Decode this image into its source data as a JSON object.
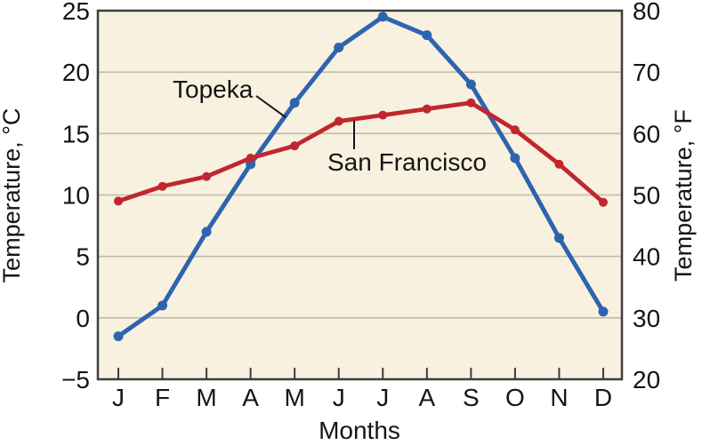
{
  "page": {
    "background": "#ffffff"
  },
  "chart_data": {
    "type": "line",
    "title": "",
    "xlabel": "Months",
    "ylabel_left": "Temperature, °C",
    "ylabel_right": "Temperature, °F",
    "categories": [
      "J",
      "F",
      "M",
      "A",
      "M",
      "J",
      "J",
      "A",
      "S",
      "O",
      "N",
      "D"
    ],
    "y_left_ticks": [
      25,
      20,
      15,
      10,
      5,
      0,
      -5
    ],
    "y_right_ticks": [
      80,
      70,
      60,
      50,
      40,
      30,
      20
    ],
    "ylim_left": [
      -5,
      25
    ],
    "ylim_right": [
      20,
      80
    ],
    "gridlines_celsius": [
      20,
      15,
      10,
      5,
      0
    ],
    "grid": "horizontal",
    "legend_position": "inline-annotations",
    "plot_background": "#f8f1df",
    "axis_color": "#3d3d3d",
    "gridline_color": "#c2bbab",
    "text_color": "#151515",
    "series": [
      {
        "name": "Topeka",
        "color": "#2e64af",
        "marker": "circle",
        "values": [
          -1.5,
          1,
          7,
          12.5,
          17.5,
          22,
          24.5,
          23,
          19,
          13,
          6.5,
          0.5
        ]
      },
      {
        "name": "San Francisco",
        "color": "#c0272d",
        "marker": "circle",
        "values": [
          9.5,
          10.7,
          11.5,
          13,
          14,
          16,
          16.5,
          17,
          17.5,
          15.3,
          12.5,
          9.4
        ]
      }
    ],
    "annotations": [
      {
        "text": "Topeka",
        "series": 0
      },
      {
        "text": "San Francisco",
        "series": 1
      }
    ]
  }
}
